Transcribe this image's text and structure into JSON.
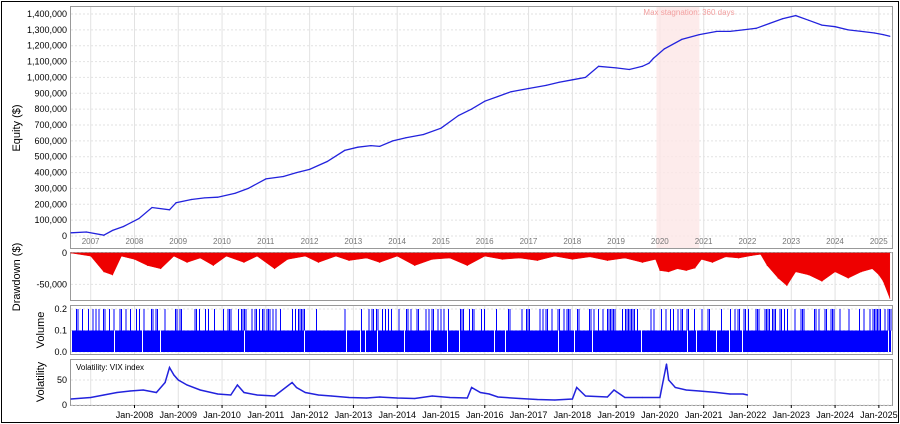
{
  "chart_data": [
    {
      "type": "line",
      "ylabel": "Equity ($)",
      "ylim": [
        0,
        1400000
      ],
      "yticks": [
        "0",
        "100,000",
        "200,000",
        "300,000",
        "400,000",
        "500,000",
        "600,000",
        "700,000",
        "800,000",
        "900,000",
        "1,000,000",
        "1,100,000",
        "1,200,000",
        "1,300,000",
        "1,400,000"
      ],
      "year_labels": [
        "2007",
        "2008",
        "2009",
        "2010",
        "2011",
        "2012",
        "2013",
        "2014",
        "2015",
        "2016",
        "2017",
        "2018",
        "2019",
        "2020",
        "2021",
        "2022",
        "2023",
        "2024",
        "2025"
      ],
      "annotation": "Max stagnation: 360 days",
      "stagnation": [
        2019.92,
        2020.9
      ],
      "grid": true,
      "color": "#2222dd",
      "x": [
        2006.55,
        2006.9,
        2007.3,
        2007.5,
        2007.75,
        2008.1,
        2008.4,
        2008.8,
        2008.95,
        2009.3,
        2009.6,
        2009.9,
        2010.3,
        2010.6,
        2011.0,
        2011.4,
        2011.7,
        2012.0,
        2012.4,
        2012.8,
        2013.1,
        2013.4,
        2013.6,
        2013.9,
        2014.2,
        2014.6,
        2015.0,
        2015.4,
        2015.7,
        2016.0,
        2016.3,
        2016.6,
        2017.0,
        2017.4,
        2017.7,
        2018.0,
        2018.3,
        2018.6,
        2019.0,
        2019.3,
        2019.6,
        2019.75,
        2019.85,
        2020.1,
        2020.5,
        2020.9,
        2021.3,
        2021.6,
        2021.9,
        2022.2,
        2022.5,
        2022.8,
        2023.1,
        2023.4,
        2023.7,
        2024.0,
        2024.3,
        2024.6,
        2024.9,
        2025.1,
        2025.25
      ],
      "values": [
        20000,
        25000,
        5000,
        35000,
        60000,
        110000,
        180000,
        165000,
        210000,
        230000,
        240000,
        245000,
        270000,
        300000,
        360000,
        375000,
        400000,
        420000,
        470000,
        540000,
        560000,
        570000,
        565000,
        600000,
        620000,
        640000,
        680000,
        760000,
        800000,
        850000,
        880000,
        910000,
        930000,
        950000,
        970000,
        985000,
        1000000,
        1070000,
        1060000,
        1050000,
        1070000,
        1090000,
        1120000,
        1180000,
        1240000,
        1270000,
        1290000,
        1290000,
        1300000,
        1310000,
        1340000,
        1370000,
        1390000,
        1360000,
        1330000,
        1320000,
        1300000,
        1290000,
        1280000,
        1270000,
        1260000
      ],
      "yaxis_extra": {}
    },
    {
      "type": "area",
      "ylabel": "Drawdown ($)",
      "ylim": [
        -75000,
        0
      ],
      "yticks": [
        "0",
        "-50,000"
      ],
      "color": "#ee0000",
      "x": [
        2006.55,
        2007.0,
        2007.3,
        2007.5,
        2007.7,
        2008.0,
        2008.3,
        2008.6,
        2008.9,
        2009.2,
        2009.5,
        2009.8,
        2010.1,
        2010.5,
        2010.8,
        2011.2,
        2011.5,
        2011.9,
        2012.2,
        2012.6,
        2012.9,
        2013.3,
        2013.6,
        2014.0,
        2014.4,
        2014.8,
        2015.2,
        2015.6,
        2016.0,
        2016.4,
        2016.8,
        2017.2,
        2017.6,
        2018.0,
        2018.4,
        2018.8,
        2019.2,
        2019.6,
        2019.9,
        2020.0,
        2020.2,
        2020.4,
        2020.6,
        2020.8,
        2020.95,
        2021.2,
        2021.5,
        2021.8,
        2022.1,
        2022.3,
        2022.45,
        2022.7,
        2022.9,
        2023.1,
        2023.4,
        2023.7,
        2024.0,
        2024.3,
        2024.6,
        2024.85,
        2025.0,
        2025.1,
        2025.25
      ],
      "values": [
        0,
        -5000,
        -30000,
        -35000,
        -5000,
        -10000,
        -20000,
        -25000,
        -5000,
        -15000,
        -8000,
        -20000,
        -5000,
        -15000,
        -5000,
        -25000,
        -10000,
        -5000,
        -15000,
        -5000,
        -12000,
        -8000,
        -15000,
        -5000,
        -20000,
        -10000,
        -8000,
        -20000,
        -5000,
        -10000,
        -8000,
        -12000,
        -5000,
        -10000,
        -6000,
        -12000,
        -8000,
        -15000,
        -10000,
        -28000,
        -30000,
        -25000,
        -28000,
        -24000,
        -10000,
        -15000,
        -6000,
        -8000,
        -4000,
        -2000,
        -20000,
        -40000,
        -52000,
        -30000,
        -35000,
        -45000,
        -30000,
        -40000,
        -30000,
        -25000,
        -35000,
        -45000,
        -72000
      ]
    },
    {
      "type": "bar",
      "ylabel": "Volume",
      "ylim": [
        0,
        0.2
      ],
      "yticks": [
        "0.0",
        "0.1",
        "0.2"
      ],
      "color": "#0000ff",
      "base_value": 0.1,
      "peak_value": 0.2
    },
    {
      "type": "line",
      "ylabel": "Volatility",
      "legend": "Volatility: VIX index",
      "ylim": [
        0,
        90
      ],
      "yticks": [
        "0",
        "50"
      ],
      "color": "#2222dd",
      "xticks": [
        "Jan-2008",
        "Jan-2009",
        "Jan-2010",
        "Jan-2011",
        "Jan-2012",
        "Jan-2013",
        "Jan-2014",
        "Jan-2015",
        "Jan-2016",
        "Jan-2017",
        "Jan-2018",
        "Jan-2019",
        "Jan-2020",
        "Jan-2021",
        "Jan-2022",
        "Jan-2023",
        "Jan-2024",
        "Jan-2025"
      ],
      "x": [
        2006.55,
        2007.0,
        2007.3,
        2007.6,
        2007.9,
        2008.2,
        2008.5,
        2008.7,
        2008.8,
        2008.9,
        2009.0,
        2009.2,
        2009.5,
        2009.9,
        2010.2,
        2010.35,
        2010.5,
        2010.8,
        2011.2,
        2011.6,
        2011.7,
        2011.9,
        2012.2,
        2012.5,
        2012.9,
        2013.3,
        2013.6,
        2014.0,
        2014.4,
        2014.8,
        2015.2,
        2015.6,
        2015.7,
        2015.9,
        2016.1,
        2016.3,
        2016.8,
        2017.2,
        2017.6,
        2018.0,
        2018.1,
        2018.3,
        2018.8,
        2018.95,
        2019.2,
        2019.6,
        2020.0,
        2020.15,
        2020.2,
        2020.35,
        2020.6,
        2020.9,
        2021.3,
        2021.6,
        2021.9,
        2022.0
      ],
      "values": [
        12,
        15,
        20,
        25,
        28,
        30,
        25,
        45,
        75,
        60,
        50,
        40,
        30,
        22,
        20,
        40,
        25,
        20,
        18,
        45,
        35,
        25,
        20,
        18,
        15,
        14,
        16,
        14,
        13,
        18,
        15,
        14,
        35,
        25,
        22,
        16,
        13,
        11,
        10,
        12,
        35,
        18,
        16,
        30,
        15,
        15,
        15,
        82,
        50,
        35,
        30,
        28,
        25,
        22,
        22,
        20
      ]
    }
  ]
}
